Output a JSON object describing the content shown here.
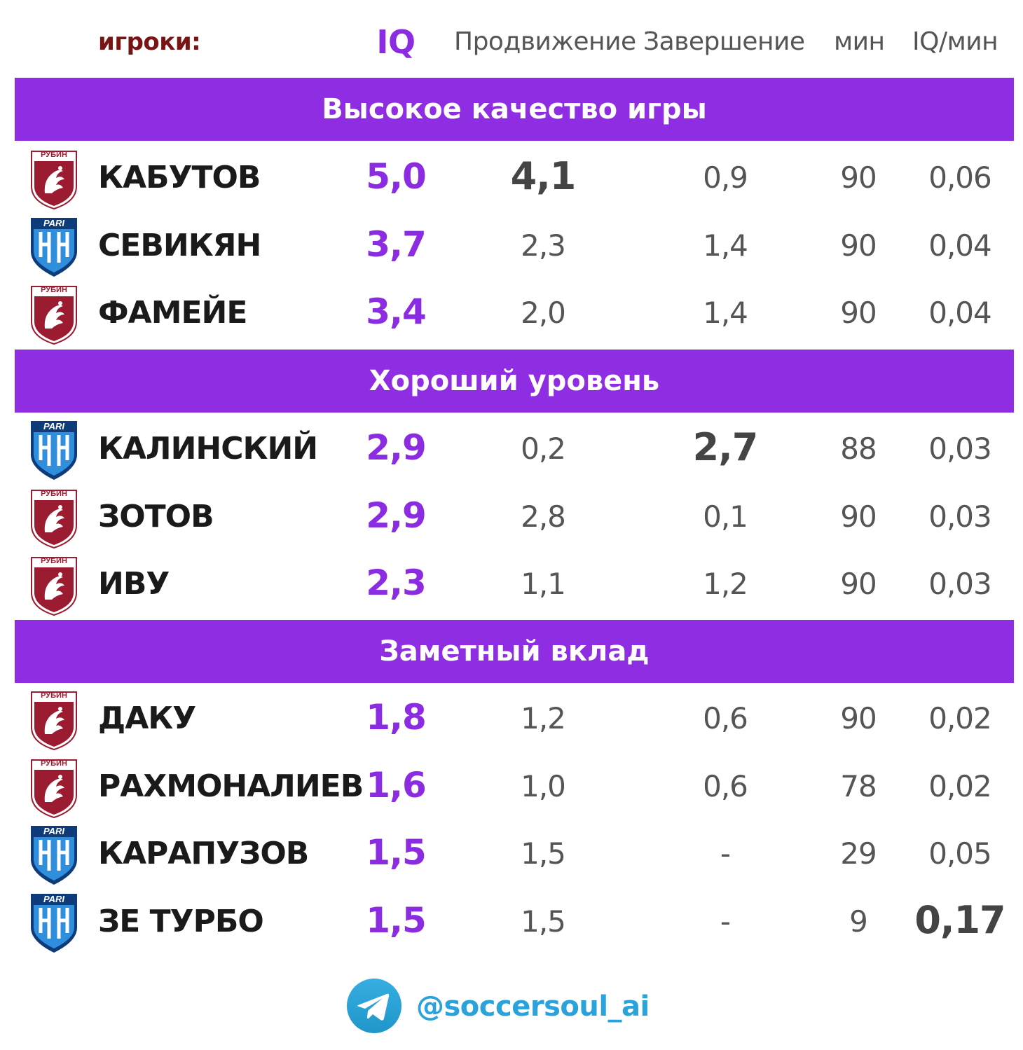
{
  "header": {
    "players": "игроки:",
    "iq": "IQ",
    "progression": "Продвижение",
    "finishing": "Завершение",
    "minutes": "мин",
    "iq_per_min": "IQ/мин"
  },
  "colors": {
    "accent": "#8e2de2",
    "rubin": "#9b1b30",
    "pari": "#1b6fb8",
    "telegram": "#2aa3dd"
  },
  "rubin_logo_text": "РУБИН",
  "pari_logo_text": "PARI",
  "groups": [
    {
      "title": "Высокое  качество игры",
      "players": [
        {
          "team": "rubin",
          "name": "КАБУТОВ",
          "iq": "5,0",
          "progression": "4,1",
          "finishing": "0,9",
          "minutes": "90",
          "iq_per_min": "0,06",
          "bold": "progression"
        },
        {
          "team": "pari",
          "name": "СЕВИКЯН",
          "iq": "3,7",
          "progression": "2,3",
          "finishing": "1,4",
          "minutes": "90",
          "iq_per_min": "0,04",
          "bold": ""
        },
        {
          "team": "rubin",
          "name": "ФАМЕЙЕ",
          "iq": "3,4",
          "progression": "2,0",
          "finishing": "1,4",
          "minutes": "90",
          "iq_per_min": "0,04",
          "bold": ""
        }
      ]
    },
    {
      "title": "Хороший уровень",
      "players": [
        {
          "team": "pari",
          "name": "КАЛИНСКИЙ",
          "iq": "2,9",
          "progression": "0,2",
          "finishing": "2,7",
          "minutes": "88",
          "iq_per_min": "0,03",
          "bold": "finishing"
        },
        {
          "team": "rubin",
          "name": "ЗОТОВ",
          "iq": "2,9",
          "progression": "2,8",
          "finishing": "0,1",
          "minutes": "90",
          "iq_per_min": "0,03",
          "bold": ""
        },
        {
          "team": "rubin",
          "name": "ИВУ",
          "iq": "2,3",
          "progression": "1,1",
          "finishing": "1,2",
          "minutes": "90",
          "iq_per_min": "0,03",
          "bold": ""
        }
      ]
    },
    {
      "title": "Заметный вклад",
      "players": [
        {
          "team": "rubin",
          "name": "ДАКУ",
          "iq": "1,8",
          "progression": "1,2",
          "finishing": "0,6",
          "minutes": "90",
          "iq_per_min": "0,02",
          "bold": ""
        },
        {
          "team": "rubin",
          "name": "РАХМОНАЛИЕВ",
          "iq": "1,6",
          "progression": "1,0",
          "finishing": "0,6",
          "minutes": "78",
          "iq_per_min": "0,02",
          "bold": ""
        },
        {
          "team": "pari",
          "name": "КАРАПУЗОВ",
          "iq": "1,5",
          "progression": "1,5",
          "finishing": "-",
          "minutes": "29",
          "iq_per_min": "0,05",
          "bold": ""
        },
        {
          "team": "pari",
          "name": "ЗЕ ТУРБО",
          "iq": "1,5",
          "progression": "1,5",
          "finishing": "-",
          "minutes": "9",
          "iq_per_min": "0,17",
          "bold": "iq_per_min"
        }
      ]
    }
  ],
  "footer": {
    "icon": "telegram-icon",
    "handle": "@soccersoul_ai"
  }
}
